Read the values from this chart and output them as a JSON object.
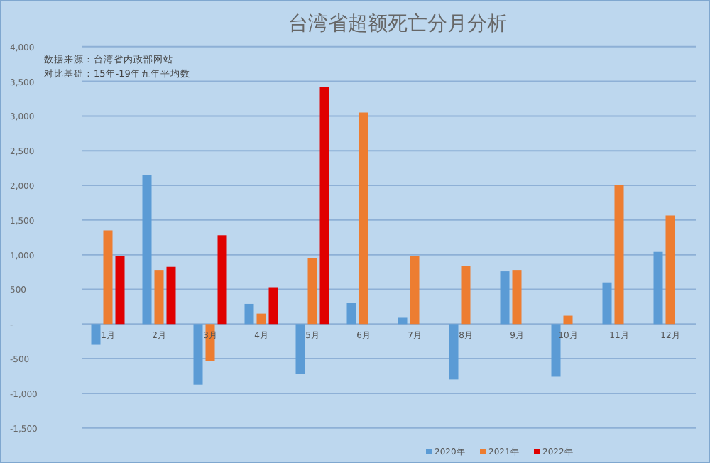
{
  "chart_data": {
    "type": "bar",
    "title": "台湾省超额死亡分月分析",
    "annotations": [
      "数据来源：台湾省内政部网站",
      "对比基础：15年-19年五年平均数"
    ],
    "categories": [
      "1月",
      "2月",
      "3月",
      "4月",
      "5月",
      "6月",
      "7月",
      "8月",
      "9月",
      "10月",
      "11月",
      "12月"
    ],
    "series": [
      {
        "name": "2020年",
        "color": "#5b9bd5",
        "values": [
          -300,
          2150,
          -875,
          290,
          -720,
          300,
          90,
          -800,
          760,
          -760,
          600,
          1040
        ]
      },
      {
        "name": "2021年",
        "color": "#ed7d31",
        "values": [
          1350,
          780,
          -530,
          150,
          950,
          3050,
          980,
          840,
          780,
          120,
          2010,
          1565
        ]
      },
      {
        "name": "2022年",
        "color": "#e00000",
        "values": [
          980,
          825,
          1280,
          530,
          3420,
          null,
          null,
          null,
          null,
          null,
          null,
          null
        ]
      }
    ],
    "ylim": [
      -1800,
      4100
    ],
    "yticks": [
      {
        "value": -1500,
        "label": "-1,500"
      },
      {
        "value": -1000,
        "label": "-1,000"
      },
      {
        "value": -500,
        "label": "-500"
      },
      {
        "value": 0,
        "label": "-"
      },
      {
        "value": 500,
        "label": "500"
      },
      {
        "value": 1000,
        "label": "1,000"
      },
      {
        "value": 1500,
        "label": "1,500"
      },
      {
        "value": 2000,
        "label": "2,000"
      },
      {
        "value": 2500,
        "label": "2,500"
      },
      {
        "value": 3000,
        "label": "3,000"
      },
      {
        "value": 3500,
        "label": "3,500"
      },
      {
        "value": 4000,
        "label": "4,000"
      }
    ],
    "grid": "y",
    "legend": "bottom right"
  }
}
